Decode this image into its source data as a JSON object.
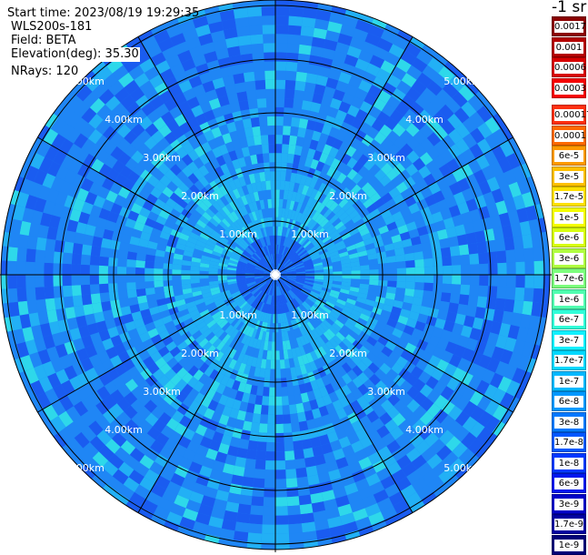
{
  "info": {
    "start_time": "Start time: 2023/08/19 19:29:35",
    "instrument": "WLS200s-181",
    "field": "Field: BETA",
    "elevation": "Elevation(deg): 35.30",
    "nrays": "NRays: 120"
  },
  "colorbar": {
    "units": "-1 sr",
    "labels": [
      "0.0017",
      "0.001",
      "0.0006",
      "0.0003",
      "0.00017",
      "0.0001",
      "6e-5",
      "3e-5",
      "1.7e-5",
      "1e-5",
      "6e-6",
      "3e-6",
      "1.7e-6",
      "1e-6",
      "6e-7",
      "3e-7",
      "1.7e-7",
      "1e-7",
      "6e-8",
      "3e-8",
      "1.7e-8",
      "1e-8",
      "6e-9",
      "3e-9",
      "1.7e-9",
      "1e-9"
    ],
    "colors": [
      "#8b0000",
      "#b40000",
      "#d80000",
      "#f50000",
      "#ff3010",
      "#ff6a00",
      "#ff9a00",
      "#ffc000",
      "#ffe000",
      "#f4ff00",
      "#d8ff10",
      "#b0ff40",
      "#7cff7c",
      "#50ffb0",
      "#30ffd8",
      "#10f0ff",
      "#00d8ff",
      "#00b8ff",
      "#0098ff",
      "#0078ff",
      "#0058ff",
      "#0038ff",
      "#0018ee",
      "#0000c8",
      "#0000a0",
      "#000078"
    ]
  },
  "range_labels": [
    "1.00km",
    "2.00km",
    "3.00km",
    "4.00km",
    "5.00km"
  ],
  "palette": {
    "deep": "#1a5cf0",
    "mid": "#1f86f5",
    "light": "#22b0f5",
    "cyan": "#2ed8ea",
    "grid": "#000000"
  }
}
